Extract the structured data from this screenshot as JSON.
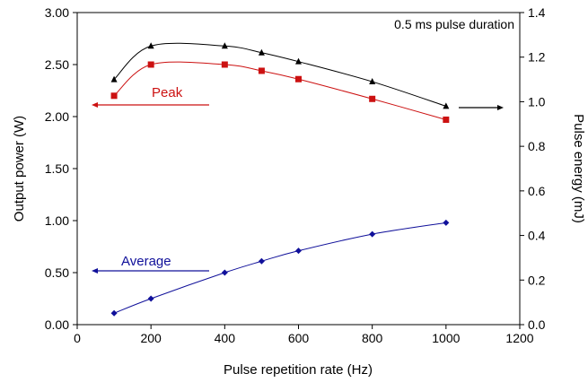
{
  "chart_data": {
    "type": "line",
    "title": "",
    "annotation": "0.5 ms pulse duration",
    "xlabel": "Pulse repetition rate (Hz)",
    "ylabel": "Output power (W)",
    "y2label": "Pulse energy (mJ)",
    "xlim": [
      0,
      1200
    ],
    "ylim": [
      0,
      3.0
    ],
    "y2lim": [
      0,
      1.4
    ],
    "xticks": [
      "0",
      "200",
      "400",
      "600",
      "800",
      "1000",
      "1200"
    ],
    "yticks": [
      "0.00",
      "0.50",
      "1.00",
      "1.50",
      "2.00",
      "2.50",
      "3.00"
    ],
    "y2ticks": [
      "0.0",
      "0.2",
      "0.4",
      "0.6",
      "0.8",
      "1.0",
      "1.2",
      "1.4"
    ],
    "grid": false,
    "x": [
      100,
      200,
      400,
      500,
      600,
      800,
      1000
    ],
    "series": [
      {
        "name": "Peak",
        "axis": "left",
        "color": "#cc1111",
        "marker": "square",
        "values": [
          2.2,
          2.5,
          2.5,
          2.44,
          2.36,
          2.17,
          1.97
        ]
      },
      {
        "name": "Average",
        "axis": "left",
        "color": "#10109a",
        "marker": "diamond",
        "values": [
          0.11,
          0.25,
          0.5,
          0.61,
          0.71,
          0.87,
          0.98
        ]
      },
      {
        "axis": "right",
        "color": "#000000",
        "marker": "triangle",
        "values": [
          1.1,
          1.25,
          1.25,
          1.22,
          1.18,
          1.09,
          0.98
        ]
      }
    ]
  }
}
